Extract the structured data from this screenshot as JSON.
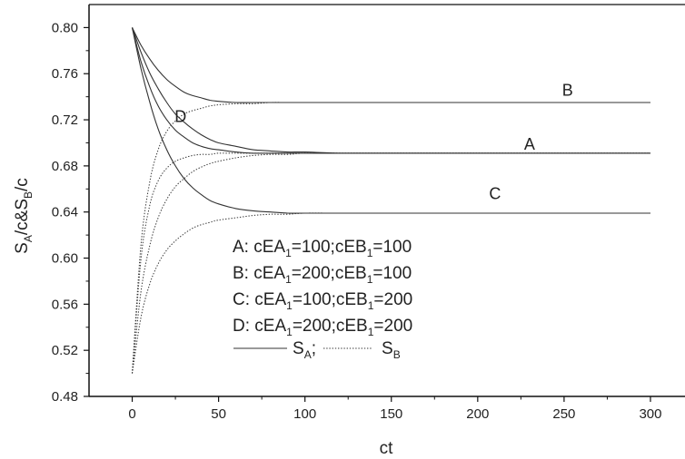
{
  "chart_data": {
    "type": "line",
    "xlabel": "ct",
    "ylabel": "S_A/c&S_B/c",
    "xlim": [
      -25,
      320
    ],
    "ylim": [
      0.48,
      0.82
    ],
    "xticks": [
      0,
      50,
      100,
      150,
      200,
      250,
      300
    ],
    "yticks": [
      0.48,
      0.52,
      0.56,
      0.6,
      0.64,
      0.68,
      0.72,
      0.76,
      0.8
    ],
    "x": [
      0,
      5,
      10,
      15,
      20,
      25,
      30,
      35,
      40,
      45,
      50,
      60,
      70,
      80,
      90,
      100,
      120,
      150,
      200,
      250,
      300
    ],
    "curve_labels": [
      {
        "text": "B",
        "x": 252,
        "y": 0.741
      },
      {
        "text": "A",
        "x": 230,
        "y": 0.694
      },
      {
        "text": "C",
        "x": 210,
        "y": 0.651
      },
      {
        "text": "D",
        "x": 28,
        "y": 0.718
      }
    ],
    "series": [
      {
        "case": "A",
        "style": "solid",
        "values": [
          0.8,
          0.779,
          0.761,
          0.747,
          0.735,
          0.725,
          0.718,
          0.712,
          0.707,
          0.703,
          0.7,
          0.697,
          0.694,
          0.693,
          0.692,
          0.692,
          0.691,
          0.691,
          0.691,
          0.691,
          0.691
        ]
      },
      {
        "case": "A",
        "style": "dotted",
        "values": [
          0.5,
          0.57,
          0.61,
          0.635,
          0.651,
          0.662,
          0.669,
          0.675,
          0.679,
          0.682,
          0.684,
          0.687,
          0.689,
          0.69,
          0.69,
          0.691,
          0.691,
          0.691,
          0.691,
          0.691,
          0.691
        ]
      },
      {
        "case": "B",
        "style": "solid",
        "values": [
          0.8,
          0.785,
          0.773,
          0.763,
          0.755,
          0.749,
          0.744,
          0.741,
          0.739,
          0.737,
          0.736,
          0.735,
          0.735,
          0.735,
          0.735,
          0.735,
          0.735,
          0.735,
          0.735,
          0.735,
          0.735
        ]
      },
      {
        "case": "B",
        "style": "dotted",
        "values": [
          0.5,
          0.61,
          0.665,
          0.694,
          0.71,
          0.719,
          0.725,
          0.728,
          0.73,
          0.732,
          0.733,
          0.734,
          0.734,
          0.735,
          0.735,
          0.735,
          0.735,
          0.735,
          0.735,
          0.735,
          0.735
        ]
      },
      {
        "case": "C",
        "style": "solid",
        "values": [
          0.8,
          0.765,
          0.736,
          0.712,
          0.694,
          0.68,
          0.669,
          0.661,
          0.655,
          0.65,
          0.647,
          0.643,
          0.641,
          0.64,
          0.639,
          0.639,
          0.639,
          0.639,
          0.639,
          0.639,
          0.639
        ]
      },
      {
        "case": "C",
        "style": "dotted",
        "values": [
          0.5,
          0.548,
          0.577,
          0.595,
          0.607,
          0.615,
          0.621,
          0.626,
          0.629,
          0.631,
          0.633,
          0.635,
          0.637,
          0.638,
          0.638,
          0.639,
          0.639,
          0.639,
          0.639,
          0.639,
          0.639
        ]
      },
      {
        "case": "D",
        "style": "solid",
        "values": [
          0.8,
          0.771,
          0.749,
          0.732,
          0.72,
          0.711,
          0.705,
          0.7,
          0.697,
          0.695,
          0.694,
          0.692,
          0.691,
          0.691,
          0.691,
          0.691,
          0.691,
          0.691,
          0.691,
          0.691,
          0.691
        ]
      },
      {
        "case": "D",
        "style": "dotted",
        "values": [
          0.5,
          0.598,
          0.645,
          0.667,
          0.678,
          0.684,
          0.687,
          0.689,
          0.69,
          0.69,
          0.691,
          0.691,
          0.691,
          0.691,
          0.691,
          0.691,
          0.691,
          0.691,
          0.691,
          0.691,
          0.691
        ]
      }
    ],
    "legend": {
      "placement": "bottom-center",
      "entries": [
        {
          "prefix": "A: cEA",
          "sub1": "1",
          "mid": "=100;cEB",
          "sub2": "1",
          "suffix": "=100"
        },
        {
          "prefix": "B: cEA",
          "sub1": "1",
          "mid": "=200;cEB",
          "sub2": "1",
          "suffix": "=100"
        },
        {
          "prefix": "C: cEA",
          "sub1": "1",
          "mid": "=100;cEB",
          "sub2": "1",
          "suffix": "=200"
        },
        {
          "prefix": "D: cEA",
          "sub1": "1",
          "mid": "=200;cEB",
          "sub2": "1",
          "suffix": "=200"
        }
      ],
      "line_key": {
        "a_text": "S",
        "a_sub": "A",
        "sep": ";",
        "b_text": "S",
        "b_sub": "B"
      }
    },
    "colors": {
      "line": "#333333",
      "axis": "#111111"
    }
  }
}
